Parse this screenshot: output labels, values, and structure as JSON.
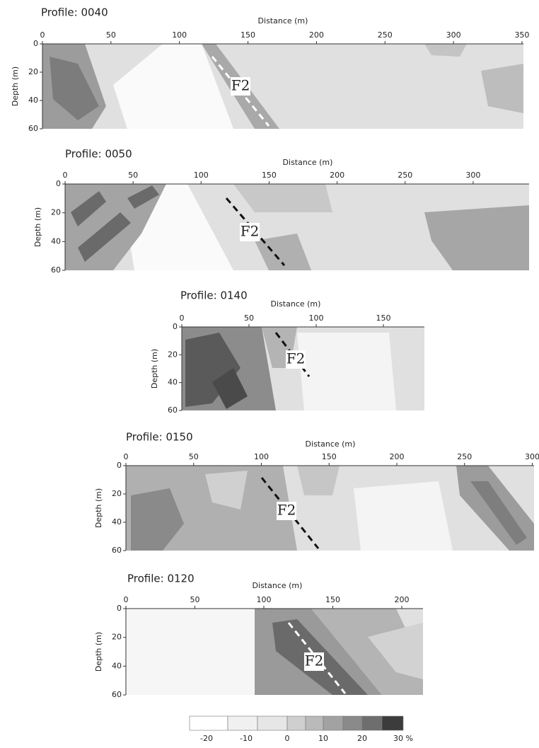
{
  "panels": [
    {
      "title": "Profile: 0040",
      "x_label": "Distance (m)",
      "y_label": "Depth (m)",
      "x_ticks": [
        0,
        50,
        100,
        150,
        200,
        250,
        300,
        350
      ],
      "y_ticks": [
        0,
        20,
        40,
        60
      ],
      "fault_label": "F2"
    },
    {
      "title": "Profile: 0050",
      "x_label": "Distance (m)",
      "y_label": "Depth (m)",
      "x_ticks": [
        0,
        50,
        100,
        150,
        200,
        250,
        300
      ],
      "y_ticks": [
        0,
        20,
        40,
        60
      ],
      "fault_label": "F2"
    },
    {
      "title": "Profile: 0140",
      "x_label": "Distance (m)",
      "y_label": "Depth (m)",
      "x_ticks": [
        0,
        50,
        100,
        150
      ],
      "y_ticks": [
        0,
        20,
        40,
        60
      ],
      "fault_label": "F2"
    },
    {
      "title": "Profile: 0150",
      "x_label": "Distance (m)",
      "y_label": "Depth (m)",
      "x_ticks": [
        0,
        50,
        100,
        150,
        200,
        250,
        300
      ],
      "y_ticks": [
        0,
        20,
        40,
        60
      ],
      "fault_label": "F2"
    },
    {
      "title": "Profile: 0120",
      "x_label": "Distance (m)",
      "y_label": "Depth (m)",
      "x_ticks": [
        0,
        50,
        100,
        150,
        200
      ],
      "y_ticks": [
        0,
        20,
        40,
        60
      ],
      "fault_label": "F2"
    }
  ],
  "colorbar": {
    "ticks": [
      "-20",
      "-10",
      "0",
      "10",
      "20",
      "30 %"
    ]
  }
}
